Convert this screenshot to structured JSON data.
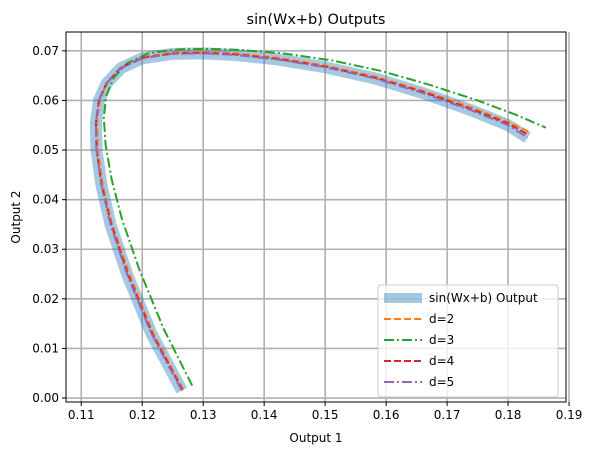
{
  "chart_data": {
    "type": "line",
    "title": "sin(Wx+b) Outputs",
    "xlabel": "Output 1",
    "ylabel": "Output 2",
    "xlim": [
      0.1075,
      0.1895
    ],
    "ylim": [
      -0.0008,
      0.0738
    ],
    "xticks": [
      0.11,
      0.12,
      0.13,
      0.14,
      0.15,
      0.16,
      0.17,
      0.18,
      0.19
    ],
    "xtick_labels": [
      "0.11",
      "0.12",
      "0.13",
      "0.14",
      "0.15",
      "0.16",
      "0.17",
      "0.18",
      "0.19"
    ],
    "yticks": [
      0.0,
      0.01,
      0.02,
      0.03,
      0.04,
      0.05,
      0.06,
      0.07
    ],
    "ytick_labels": [
      "0.00",
      "0.01",
      "0.02",
      "0.03",
      "0.04",
      "0.05",
      "0.06",
      "0.07"
    ],
    "grid": true,
    "legend_position": "lower-right",
    "series": [
      {
        "name": "sin(Wx+b) Output",
        "color": "#1f77b4",
        "opacity": 0.4,
        "style": "solid",
        "x": [
          0.1265,
          0.1215,
          0.1175,
          0.1148,
          0.1133,
          0.1125,
          0.1124,
          0.1129,
          0.1142,
          0.1165,
          0.12,
          0.125,
          0.13,
          0.135,
          0.142,
          0.15,
          0.158,
          0.166,
          0.174,
          0.18,
          0.1832
        ],
        "y": [
          0.0015,
          0.013,
          0.025,
          0.035,
          0.043,
          0.05,
          0.0555,
          0.06,
          0.0635,
          0.0665,
          0.0685,
          0.0694,
          0.0695,
          0.0692,
          0.0683,
          0.0667,
          0.0645,
          0.0615,
          0.058,
          0.055,
          0.0525
        ]
      },
      {
        "name": "d=2",
        "color": "#ff7f0e",
        "style": "dashed",
        "x": [
          0.1267,
          0.1217,
          0.1178,
          0.115,
          0.1135,
          0.1127,
          0.1126,
          0.1131,
          0.1144,
          0.1167,
          0.1202,
          0.1252,
          0.1302,
          0.1352,
          0.1422,
          0.1502,
          0.1582,
          0.1662,
          0.1742,
          0.1802,
          0.1837
        ],
        "y": [
          0.0018,
          0.0133,
          0.0253,
          0.0353,
          0.0433,
          0.0503,
          0.0558,
          0.0603,
          0.0638,
          0.0668,
          0.0688,
          0.0697,
          0.0698,
          0.0695,
          0.0686,
          0.067,
          0.0648,
          0.0619,
          0.0585,
          0.0556,
          0.0535
        ]
      },
      {
        "name": "d=3",
        "color": "#2ca02c",
        "style": "dashdot",
        "x": [
          0.1282,
          0.1235,
          0.1195,
          0.1167,
          0.115,
          0.114,
          0.1137,
          0.1141,
          0.1153,
          0.1175,
          0.121,
          0.126,
          0.131,
          0.136,
          0.143,
          0.151,
          0.159,
          0.167,
          0.175,
          0.1815,
          0.1862
        ],
        "y": [
          0.0025,
          0.014,
          0.026,
          0.036,
          0.044,
          0.051,
          0.0565,
          0.061,
          0.0645,
          0.0675,
          0.0695,
          0.0703,
          0.0704,
          0.0702,
          0.0695,
          0.0681,
          0.066,
          0.0632,
          0.06,
          0.057,
          0.0545
        ]
      },
      {
        "name": "d=4",
        "color": "#d62728",
        "style": "dashed",
        "x": [
          0.1266,
          0.1216,
          0.1176,
          0.1149,
          0.1133,
          0.1125,
          0.1124,
          0.1129,
          0.1142,
          0.1165,
          0.1201,
          0.1251,
          0.1301,
          0.1351,
          0.1421,
          0.1501,
          0.1581,
          0.1661,
          0.1741,
          0.1801,
          0.1834
        ],
        "y": [
          0.0016,
          0.0131,
          0.0251,
          0.0351,
          0.0431,
          0.0501,
          0.0556,
          0.0601,
          0.0636,
          0.0666,
          0.0686,
          0.0695,
          0.0696,
          0.0693,
          0.0684,
          0.0668,
          0.0646,
          0.0617,
          0.0582,
          0.0553,
          0.053
        ]
      },
      {
        "name": "d=5",
        "color": "#9467bd",
        "style": "dashdot",
        "x": [
          0.1265,
          0.1215,
          0.1175,
          0.1148,
          0.1133,
          0.1125,
          0.1124,
          0.1129,
          0.1142,
          0.1165,
          0.12,
          0.125,
          0.13,
          0.135,
          0.142,
          0.15,
          0.158,
          0.166,
          0.174,
          0.18,
          0.1832
        ],
        "y": [
          0.0015,
          0.013,
          0.025,
          0.035,
          0.043,
          0.05,
          0.0555,
          0.06,
          0.0635,
          0.0665,
          0.0685,
          0.0694,
          0.0695,
          0.0692,
          0.0683,
          0.0667,
          0.0645,
          0.0615,
          0.058,
          0.055,
          0.0525
        ]
      }
    ]
  }
}
